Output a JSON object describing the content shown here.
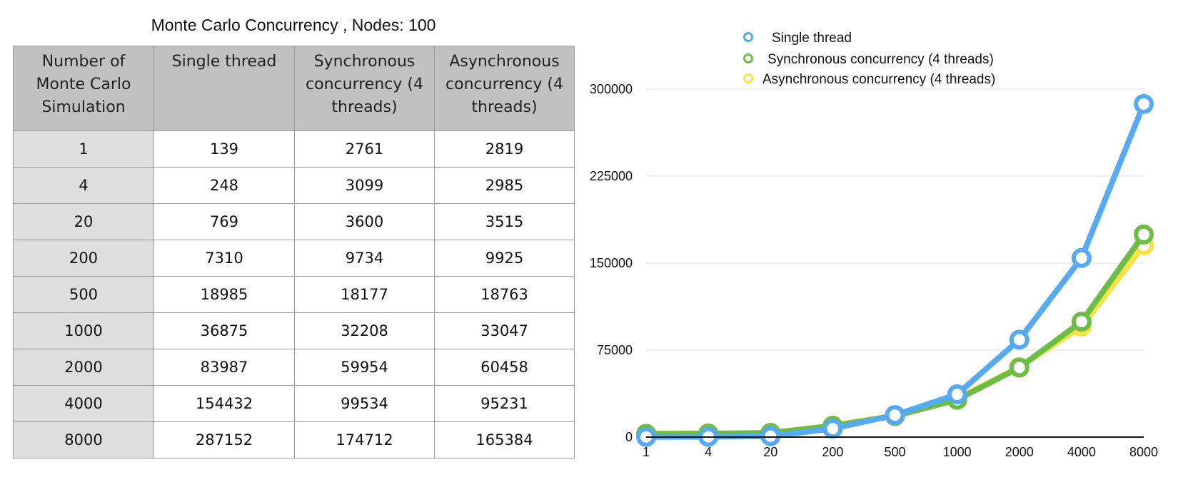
{
  "table": {
    "title": "Monte Carlo Concurrency , Nodes: 100",
    "headers": [
      "Number of Monte Carlo Simulation",
      "Single thread",
      "Synchronous concurrency (4 threads)",
      "Asynchronous concurrency (4 threads)"
    ],
    "rows": [
      [
        "1",
        "139",
        "2761",
        "2819"
      ],
      [
        "4",
        "248",
        "3099",
        "2985"
      ],
      [
        "20",
        "769",
        "3600",
        "3515"
      ],
      [
        "200",
        "7310",
        "9734",
        "9925"
      ],
      [
        "500",
        "18985",
        "18177",
        "18763"
      ],
      [
        "1000",
        "36875",
        "32208",
        "33047"
      ],
      [
        "2000",
        "83987",
        "59954",
        "60458"
      ],
      [
        "4000",
        "154432",
        "99534",
        "95231"
      ],
      [
        "8000",
        "287152",
        "174712",
        "165384"
      ]
    ]
  },
  "chart_data": {
    "type": "line",
    "categories": [
      "1",
      "4",
      "20",
      "200",
      "500",
      "1000",
      "2000",
      "4000",
      "8000"
    ],
    "series": [
      {
        "name": "Single thread",
        "color": "#55aaf2",
        "values": [
          139,
          248,
          769,
          7310,
          18985,
          36875,
          83987,
          154432,
          287152
        ]
      },
      {
        "name": "Synchronous concurrency (4 threads)",
        "color": "#6bbd45",
        "values": [
          2761,
          3099,
          3600,
          9734,
          18177,
          32208,
          59954,
          99534,
          174712
        ]
      },
      {
        "name": "Asynchronous concurrency (4 threads)",
        "color": "#fbe046",
        "values": [
          2819,
          2985,
          3515,
          9925,
          18763,
          33047,
          60458,
          95231,
          165384
        ]
      }
    ],
    "yticks": [
      0,
      75000,
      150000,
      225000,
      300000
    ],
    "ylim": [
      0,
      300000
    ],
    "grid": true,
    "legend_position": "top"
  }
}
